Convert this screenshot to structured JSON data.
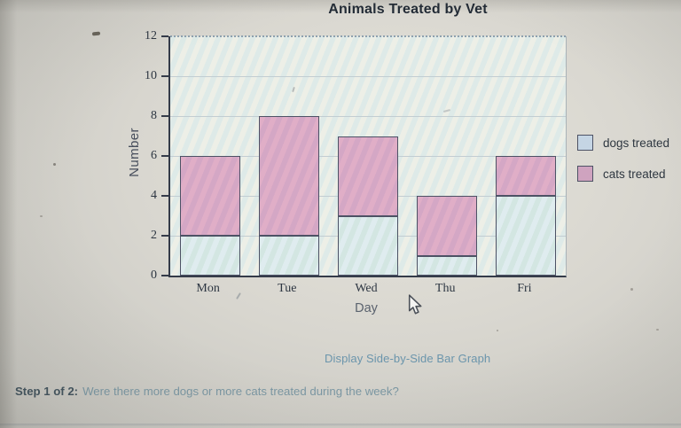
{
  "title": "Animals Treated by Vet",
  "chart_data": {
    "type": "bar",
    "stacked": true,
    "title": "Animals Treated by Vet",
    "categories": [
      "Mon",
      "Tue",
      "Wed",
      "Thu",
      "Fri"
    ],
    "series": [
      {
        "name": "dogs treated",
        "values": [
          2,
          2,
          3,
          1,
          4
        ],
        "fill": "#dfecef",
        "fill_alt": "#d3e6e2",
        "swatch": "#c5d5e4"
      },
      {
        "name": "cats treated",
        "values": [
          4,
          6,
          4,
          3,
          2
        ],
        "fill": "#e0aec7",
        "fill_alt": "#d4a7c5",
        "swatch": "#cfa3bf"
      }
    ],
    "xlabel": "Day",
    "ylabel": "Number",
    "ylim": [
      0,
      12
    ],
    "yticks": [
      0,
      2,
      4,
      6,
      8,
      10,
      12
    ],
    "grid": true,
    "legend_position": "right"
  },
  "legend": {
    "items": [
      "dogs treated",
      "cats treated"
    ]
  },
  "footer": {
    "link_label": "Display Side-by-Side Bar Graph",
    "step_label": "Step 1 of 2:",
    "step_question": "Were there more dogs or more cats treated during the week?"
  },
  "colors": {
    "link": "#6b95ac",
    "bar_border": "#4d5265",
    "axis": "#343b49",
    "gridline": "#c2cdd2",
    "title_text": "#222b36"
  }
}
